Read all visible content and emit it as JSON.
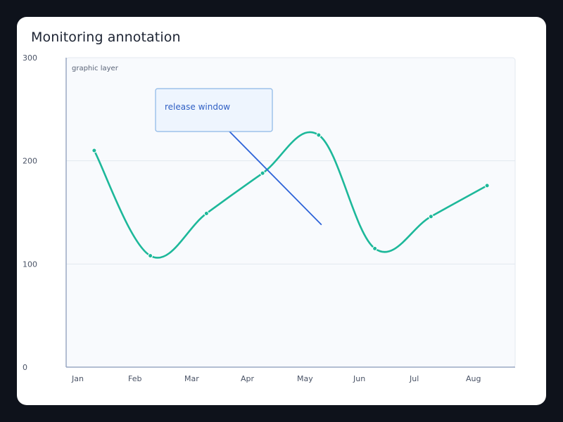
{
  "chart_data": {
    "type": "line",
    "title": "Monitoring annotation",
    "categories": [
      "Jan",
      "Feb",
      "Mar",
      "Apr",
      "May",
      "Jun",
      "Jul",
      "Aug"
    ],
    "series": [
      {
        "values": [
          210,
          108,
          149,
          188,
          225,
          115,
          146,
          176
        ]
      }
    ],
    "ylim": [
      0,
      300
    ],
    "yticks": [
      0,
      100,
      200,
      300
    ],
    "grid": true,
    "graphic_layer_label": "graphic layer",
    "annotation": {
      "text": "release window",
      "line_from": {
        "x": 2.2,
        "y": 240
      },
      "line_to": {
        "x": 4.05,
        "y": 138
      }
    },
    "colors": {
      "series": "#1db89a",
      "annotation_line": "#2e63d8",
      "annotation_box_fill": "#eef5fe",
      "annotation_box_border": "#8ab6e6",
      "plot_bg": "#f8fafd",
      "axis": "#9aa9c4",
      "grid": "#e2e7ef"
    }
  }
}
